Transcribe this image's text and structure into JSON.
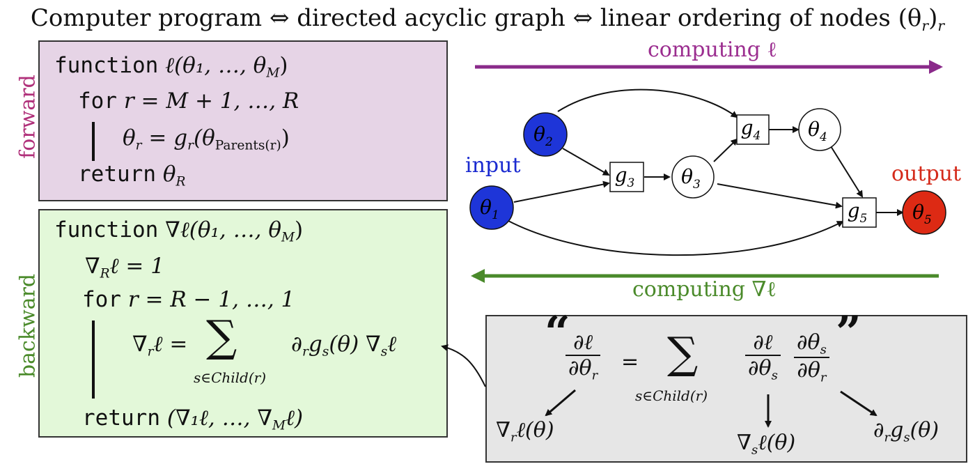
{
  "title": "Computer program ⇔ directed acyclic graph ⇔ linear ordering of nodes (θ",
  "title_sub": "r",
  "title_close": ")",
  "title_outer_sub": "r",
  "forward": {
    "label": "forward",
    "label_color": "#b0307a",
    "line1_kw": "function",
    "line1_math": "ℓ(θ₁, …, θ",
    "line1_sub": "M",
    "line1_end": ")",
    "line2_kw": "for",
    "line2_math": "r = M + 1, …, R",
    "line3_math_a": "θ",
    "line3_sub_a": "r",
    "line3_math_b": " = g",
    "line3_sub_b": "r",
    "line3_math_c": "(θ",
    "line3_sub_c": "Parents(r)",
    "line3_math_d": ")",
    "line4_kw": "return",
    "line4_math": "θ",
    "line4_sub": "R"
  },
  "backward": {
    "label": "backward",
    "label_color": "#4a8a2a",
    "line1_kw": "function",
    "line1_math": "∇ℓ(θ₁, …, θ",
    "line1_sub": "M",
    "line1_end": ")",
    "line2_math_a": "∇",
    "line2_sub": "R",
    "line2_math_b": "ℓ = 1",
    "line3_kw": "for",
    "line3_math": "r = R − 1, …, 1",
    "line4_lhs": "∇",
    "line4_lhs_sub": "r",
    "line4_lhs_end": "ℓ =",
    "line4_sigma": "∑",
    "line4_sigma_sub": "s∈Child(r)",
    "line4_rhs": "∂",
    "line4_rhs_sub1": "r",
    "line4_rhs_mid": "g",
    "line4_rhs_sub2": "s",
    "line4_rhs_mid2": "(θ) ∇",
    "line4_rhs_sub3": "s",
    "line4_rhs_end": "ℓ",
    "line5_kw": "return",
    "line5_math": "(∇₁ℓ, …, ∇",
    "line5_sub": "M",
    "line5_end": "ℓ)"
  },
  "graph": {
    "computing_fwd": "computing ℓ",
    "computing_fwd_color": "#9b2d8f",
    "computing_bwd": "computing ∇ℓ",
    "computing_bwd_color": "#4a8a2a",
    "input_label": "input",
    "input_color": "#1a2ad0",
    "output_label": "output",
    "output_color": "#d42a1a",
    "theta_sym": "θ",
    "g_sym": "g",
    "nodes": {
      "theta1_sub": "1",
      "theta2_sub": "2",
      "theta3_sub": "3",
      "theta4_sub": "4",
      "theta5_sub": "5",
      "g3_sub": "3",
      "g4_sub": "4",
      "g5_sub": "5"
    },
    "node_blue": "#1e35d8",
    "node_red": "#dd2a14"
  },
  "chain_rule": {
    "open_quote": "“",
    "close_quote": "”",
    "lhs_num": "∂ℓ",
    "lhs_den": "∂θ",
    "lhs_den_sub": "r",
    "equals": "=",
    "sigma": "∑",
    "sigma_sub": "s∈Child(r)",
    "f1_num": "∂ℓ",
    "f1_den": "∂θ",
    "f1_den_sub": "s",
    "f2_num": "∂θ",
    "f2_num_sub": "s",
    "f2_den": "∂θ",
    "f2_den_sub": "r",
    "ann1": "∇",
    "ann1_sub": "r",
    "ann1_end": "ℓ(θ)",
    "ann2": "∇",
    "ann2_sub": "s",
    "ann2_end": "ℓ(θ)",
    "ann3": "∂",
    "ann3_sub1": "r",
    "ann3_mid": "g",
    "ann3_sub2": "s",
    "ann3_end": "(θ)"
  }
}
